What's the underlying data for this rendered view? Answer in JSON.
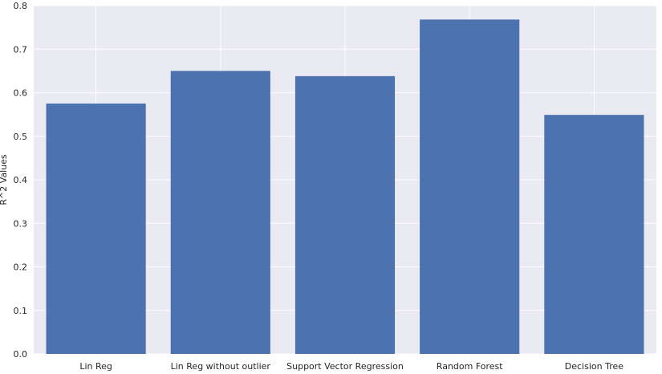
{
  "chart_data": {
    "type": "bar",
    "categories": [
      "Lin Reg",
      "Lin Reg without outlier",
      "Support Vector Regression",
      "Random Forest",
      "Decision Tree"
    ],
    "values": [
      0.575,
      0.65,
      0.638,
      0.768,
      0.549
    ],
    "title": "",
    "xlabel": "",
    "ylabel": "R^2 Values",
    "ylim": [
      0,
      0.8
    ],
    "yticks": [
      "0.0",
      "0.1",
      "0.2",
      "0.3",
      "0.4",
      "0.5",
      "0.6",
      "0.7",
      "0.8"
    ],
    "grid": true,
    "bar_color": "#4c72b0",
    "background_color": "#eaeaf2"
  }
}
